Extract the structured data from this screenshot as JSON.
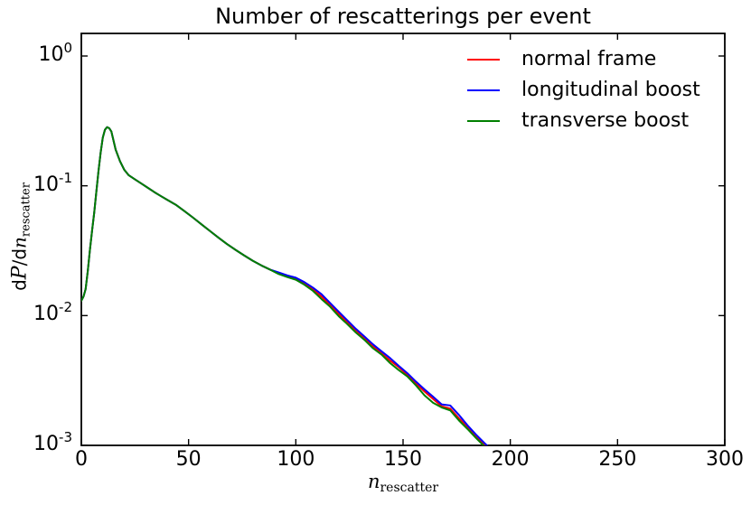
{
  "chart_data": {
    "type": "line",
    "title": "Number of rescatterings per event",
    "xlabel": "n_rescatter",
    "ylabel": "dP/dn_rescatter",
    "grid": false,
    "legend_position": "upper right",
    "x_axis": {
      "min": 0,
      "max": 300,
      "ticks": [
        0,
        50,
        100,
        150,
        200,
        250,
        300
      ]
    },
    "y_axis": {
      "scale": "log",
      "min": 0.001,
      "max": 1.49,
      "ticks": [
        {
          "value": 1.0,
          "base": "10",
          "exp": "0"
        },
        {
          "value": 0.1,
          "base": "10",
          "exp": "-1"
        },
        {
          "value": 0.01,
          "base": "10",
          "exp": "-2"
        },
        {
          "value": 0.001,
          "base": "10",
          "exp": "-3"
        }
      ]
    },
    "x": [
      0,
      1,
      2,
      3,
      4,
      5,
      6,
      7,
      8,
      9,
      10,
      11,
      12,
      13,
      14,
      16,
      18,
      20,
      22,
      25,
      28,
      31,
      34,
      37,
      40,
      44,
      48,
      52,
      56,
      60,
      64,
      68,
      72,
      76,
      80,
      84,
      88,
      92,
      96,
      100,
      104,
      108,
      112,
      116,
      120,
      124,
      128,
      132,
      136,
      140,
      144,
      148,
      152,
      156,
      160,
      164,
      168,
      172,
      176,
      180,
      184,
      188,
      191
    ],
    "series": [
      {
        "name": "normal frame",
        "color": "#ff0000",
        "values": [
          0.013,
          0.014,
          0.016,
          0.022,
          0.032,
          0.045,
          0.062,
          0.09,
          0.13,
          0.18,
          0.235,
          0.27,
          0.283,
          0.278,
          0.262,
          0.19,
          0.155,
          0.133,
          0.121,
          0.112,
          0.104,
          0.0965,
          0.0895,
          0.0835,
          0.078,
          0.0715,
          0.064,
          0.057,
          0.0505,
          0.0448,
          0.0398,
          0.0355,
          0.032,
          0.029,
          0.0264,
          0.0243,
          0.0226,
          0.0212,
          0.0201,
          0.0192,
          0.0177,
          0.0159,
          0.014,
          0.012,
          0.0103,
          0.0089,
          0.0077,
          0.0067,
          0.0058,
          0.0051,
          0.0045,
          0.004,
          0.0035,
          0.003,
          0.0026,
          0.00228,
          0.002,
          0.00192,
          0.00162,
          0.00139,
          0.00118,
          0.00101,
          0.00091
        ]
      },
      {
        "name": "longitudinal boost",
        "color": "#0000ff",
        "values": [
          0.013,
          0.014,
          0.016,
          0.022,
          0.032,
          0.045,
          0.062,
          0.09,
          0.13,
          0.18,
          0.235,
          0.27,
          0.283,
          0.278,
          0.262,
          0.19,
          0.155,
          0.133,
          0.121,
          0.112,
          0.104,
          0.0965,
          0.0895,
          0.0835,
          0.078,
          0.0715,
          0.064,
          0.057,
          0.0505,
          0.0448,
          0.0398,
          0.0355,
          0.032,
          0.029,
          0.0264,
          0.0243,
          0.0226,
          0.0215,
          0.0204,
          0.0196,
          0.0181,
          0.0164,
          0.0146,
          0.0125,
          0.0107,
          0.0092,
          0.0079,
          0.0069,
          0.006,
          0.0053,
          0.0047,
          0.0041,
          0.0036,
          0.0031,
          0.0027,
          0.00237,
          0.00207,
          0.00203,
          0.00172,
          0.00143,
          0.00121,
          0.00104,
          0.00093
        ]
      },
      {
        "name": "transverse boost",
        "color": "#008000",
        "values": [
          0.013,
          0.014,
          0.016,
          0.022,
          0.032,
          0.045,
          0.062,
          0.09,
          0.13,
          0.18,
          0.235,
          0.27,
          0.283,
          0.278,
          0.262,
          0.19,
          0.155,
          0.133,
          0.121,
          0.112,
          0.104,
          0.0965,
          0.0895,
          0.0835,
          0.078,
          0.0715,
          0.064,
          0.057,
          0.0505,
          0.0448,
          0.0398,
          0.0355,
          0.032,
          0.029,
          0.0264,
          0.0243,
          0.0226,
          0.0209,
          0.0198,
          0.0189,
          0.0173,
          0.0155,
          0.0134,
          0.0117,
          0.0099,
          0.0086,
          0.0074,
          0.0065,
          0.0056,
          0.005,
          0.0043,
          0.0038,
          0.0034,
          0.0029,
          0.00243,
          0.00213,
          0.00196,
          0.00186,
          0.00156,
          0.00134,
          0.00114,
          0.00098,
          0.00088
        ]
      }
    ]
  },
  "labels": {
    "ylabel_parts": {
      "d1": "d",
      "cal_p": "P",
      "mid": "/d",
      "var": "n",
      "sub": "rescatter"
    },
    "xlabel_parts": {
      "var": "n",
      "sub": "rescatter"
    }
  }
}
